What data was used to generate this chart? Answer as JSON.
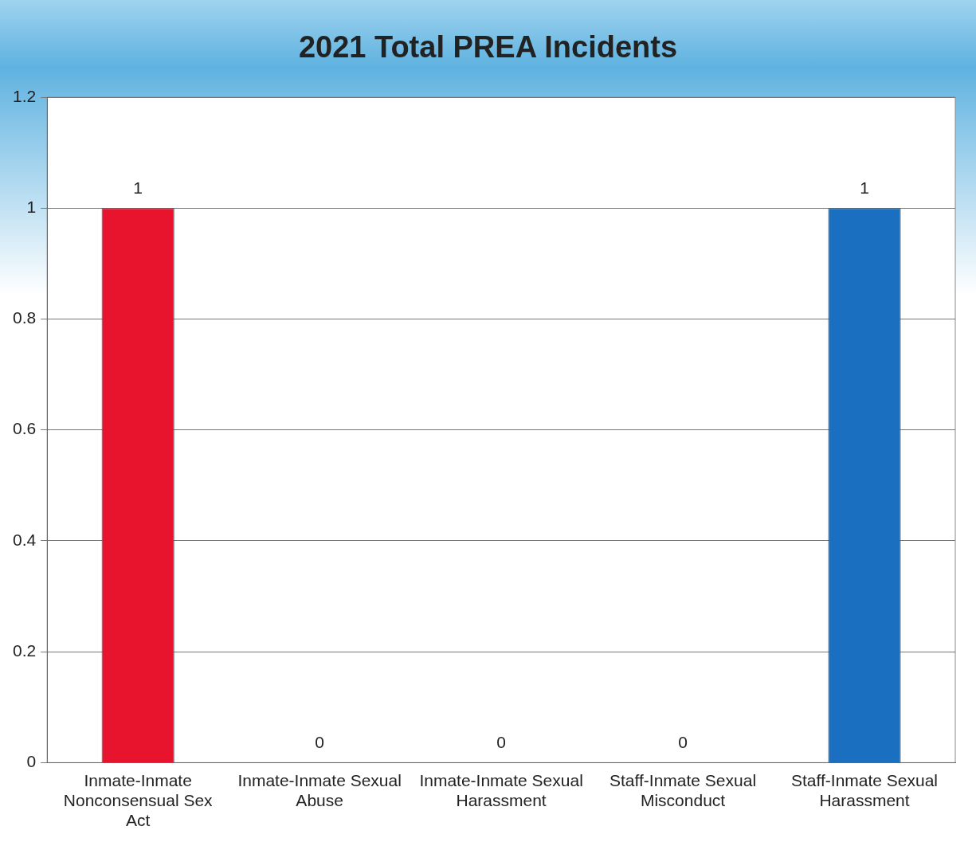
{
  "chart_data": {
    "type": "bar",
    "title": "2021 Total PREA Incidents",
    "categories": [
      "Inmate-Inmate Nonconsensual Sex Act",
      "Inmate-Inmate Sexual Abuse",
      "Inmate-Inmate Sexual Harassment",
      "Staff-Inmate Sexual Misconduct",
      "Staff-Inmate Sexual Harassment"
    ],
    "values": [
      1,
      0,
      0,
      0,
      1
    ],
    "colors": [
      "#e8142e",
      "#2f6fb5",
      "#2f6fb5",
      "#2f6fb5",
      "#1a6fc0"
    ],
    "ylim": [
      0,
      1.2
    ],
    "yticks": [
      0,
      0.2,
      0.4,
      0.6,
      0.8,
      1,
      1.2
    ],
    "grid": "y",
    "data_labels": true,
    "legend": false
  }
}
